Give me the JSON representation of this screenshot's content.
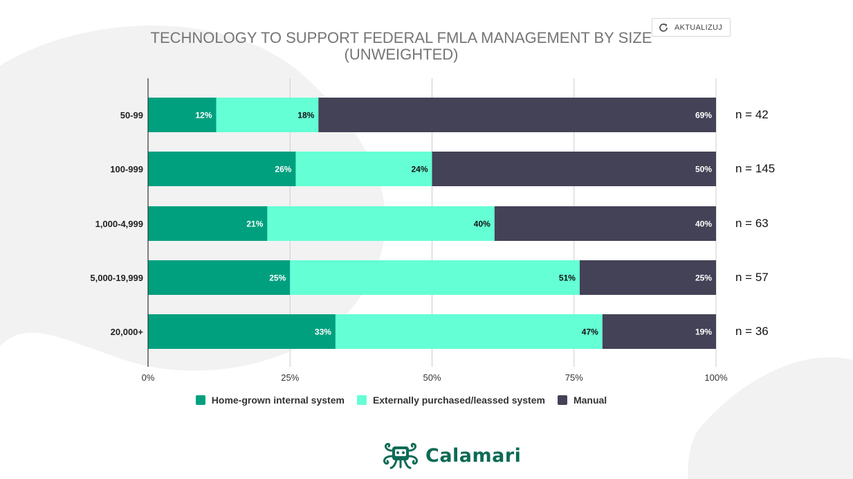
{
  "toolbar": {
    "refresh_label": "AKTUALIZUJ",
    "refresh_icon": "refresh-icon"
  },
  "brand": {
    "name": "Calamari",
    "logo_icon": "octopus-icon",
    "color": "#0d6b55"
  },
  "colors": {
    "home_grown": "#00a07f",
    "external": "#64ffd4",
    "manual": "#434256",
    "grid": "#cccccc",
    "axis": "#333333",
    "decor": "#f1f1f1"
  },
  "chart_data": {
    "type": "bar",
    "orientation": "horizontal",
    "stacked": true,
    "title_lines": [
      "TECHNOLOGY TO SUPPORT FEDERAL FMLA MANAGEMENT BY SIZE",
      "(UNWEIGHTED)"
    ],
    "categories": [
      "50-99",
      "100-999",
      "1,000-4,999",
      "5,000-19,999",
      "20,000+"
    ],
    "series": [
      {
        "name": "Home-grown internal system",
        "values": [
          12,
          26,
          21,
          25,
          33
        ],
        "labels": [
          "12%",
          "26%",
          "21%",
          "25%",
          "33%"
        ]
      },
      {
        "name": "Externally purchased/leassed system",
        "values": [
          18,
          24,
          40,
          51,
          47
        ],
        "labels": [
          "18%",
          "24%",
          "40%",
          "51%",
          "47%"
        ]
      },
      {
        "name": "Manual",
        "values": [
          69,
          50,
          40,
          25,
          19
        ],
        "labels": [
          "69%",
          "50%",
          "40%",
          "25%",
          "19%"
        ]
      }
    ],
    "xlim": [
      0,
      100
    ],
    "x_ticks": [
      0,
      25,
      50,
      75,
      100
    ],
    "x_tick_labels": [
      "0%",
      "25%",
      "50%",
      "75%",
      "100%"
    ],
    "annotations": [
      "n = 42",
      "n = 145",
      "n = 63",
      "n = 57",
      "n = 36"
    ],
    "grid": true,
    "legend_position": "bottom"
  }
}
